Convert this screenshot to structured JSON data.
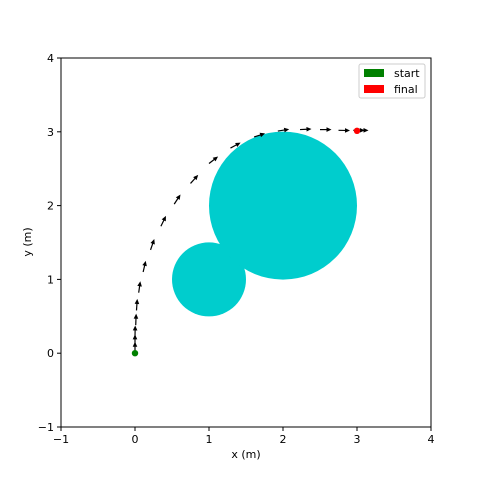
{
  "chart_data": {
    "type": "scatter",
    "title": "",
    "xlabel": "x (m)",
    "ylabel": "y (m)",
    "xlim": [
      -1,
      4
    ],
    "ylim": [
      -1,
      4
    ],
    "xticks": [
      "−1",
      "0",
      "1",
      "2",
      "3",
      "4"
    ],
    "yticks": [
      "−1",
      "0",
      "1",
      "2",
      "3",
      "4"
    ],
    "xtick_values": [
      -1,
      0,
      1,
      2,
      3,
      4
    ],
    "ytick_values": [
      -1,
      0,
      1,
      2,
      3,
      4
    ],
    "grid": false,
    "legend_position": "top-right",
    "legend": [
      {
        "label": "start",
        "color": "#008000"
      },
      {
        "label": "final",
        "color": "#ff0000"
      }
    ],
    "obstacles": [
      {
        "cx": 1.0,
        "cy": 1.0,
        "r": 0.5,
        "color": "#00cdcd"
      },
      {
        "cx": 2.0,
        "cy": 2.0,
        "r": 1.0,
        "color": "#00cdcd"
      }
    ],
    "start": {
      "x": 0.0,
      "y": 0.0,
      "color": "#008000"
    },
    "final": {
      "x": 3.0,
      "y": 3.0,
      "color": "#ff0000"
    },
    "trajectory": [
      {
        "x": 0.0,
        "y": 0.0,
        "heading_deg": 90
      },
      {
        "x": 0.0,
        "y": 0.1,
        "heading_deg": 90
      },
      {
        "x": 0.0,
        "y": 0.22,
        "heading_deg": 89
      },
      {
        "x": 0.01,
        "y": 0.38,
        "heading_deg": 88
      },
      {
        "x": 0.02,
        "y": 0.58,
        "heading_deg": 86
      },
      {
        "x": 0.05,
        "y": 0.82,
        "heading_deg": 82
      },
      {
        "x": 0.11,
        "y": 1.1,
        "heading_deg": 77
      },
      {
        "x": 0.21,
        "y": 1.4,
        "heading_deg": 71
      },
      {
        "x": 0.35,
        "y": 1.72,
        "heading_deg": 64
      },
      {
        "x": 0.53,
        "y": 2.02,
        "heading_deg": 57
      },
      {
        "x": 0.75,
        "y": 2.3,
        "heading_deg": 48
      },
      {
        "x": 1.0,
        "y": 2.57,
        "heading_deg": 38
      },
      {
        "x": 1.29,
        "y": 2.78,
        "heading_deg": 28
      },
      {
        "x": 1.61,
        "y": 2.93,
        "heading_deg": 18
      },
      {
        "x": 1.93,
        "y": 3.01,
        "heading_deg": 9
      },
      {
        "x": 2.23,
        "y": 3.03,
        "heading_deg": 3
      },
      {
        "x": 2.5,
        "y": 3.03,
        "heading_deg": 0
      },
      {
        "x": 2.75,
        "y": 3.02,
        "heading_deg": -1
      },
      {
        "x": 2.95,
        "y": 3.02,
        "heading_deg": 0
      },
      {
        "x": 3.0,
        "y": 3.02,
        "heading_deg": 0
      }
    ],
    "arrow_color": "#000000"
  }
}
